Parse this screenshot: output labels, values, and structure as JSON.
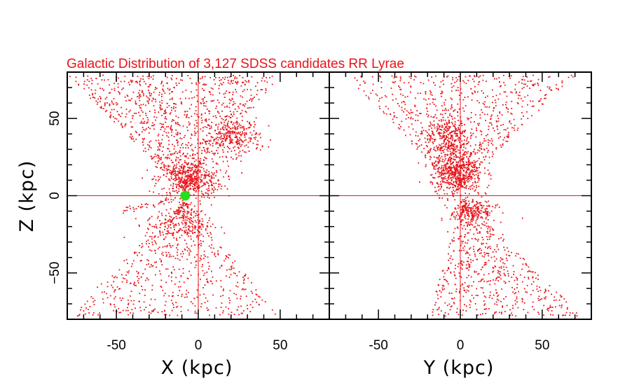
{
  "chart_data": {
    "type": "scatter",
    "title": "Galactic Distribution of 3,127 SDSS candidates RR Lyrae",
    "colors": {
      "points": "#e8141a",
      "sun_marker": "#22e01e",
      "frame": "#000000",
      "title": "#e8141a",
      "reference_lines": "#e8141a"
    },
    "ylabel": "Z (kpc)",
    "ylim": [
      -80,
      80
    ],
    "yticks": [
      50,
      0,
      -50
    ],
    "sun_marker": {
      "panel": "left",
      "x": -8,
      "z": 0
    },
    "panels": [
      {
        "name": "left",
        "xlabel": "X (kpc)",
        "xlim": [
          -80,
          80
        ],
        "xticks": [
          -50,
          0,
          50
        ],
        "xtick_labels": [
          "-50",
          "0",
          "50"
        ],
        "reference_lines": {
          "x": 0,
          "z": 0
        },
        "point_groups": [
          {
            "description": "upper halo cone",
            "apex": [
              -8,
              2
            ],
            "x_range": [
              -80,
              50
            ],
            "z_range": [
              2,
              78
            ],
            "count": 1000
          },
          {
            "description": "dense clump near apex",
            "center": [
              -5,
              10
            ],
            "spread": [
              10,
              6
            ],
            "count": 420
          },
          {
            "description": "upper-right clump",
            "center": [
              22,
              38
            ],
            "spread": [
              8,
              6
            ],
            "count": 280
          },
          {
            "description": "lower halo cone",
            "apex": [
              -8,
              -3
            ],
            "x_range": [
              -80,
              50
            ],
            "z_range": [
              -78,
              -3
            ],
            "count": 620
          },
          {
            "description": "lower clump",
            "center": [
              -12,
              -18
            ],
            "spread": [
              10,
              6
            ],
            "count": 200
          },
          {
            "description": "thin streak toward lower left",
            "from": [
              -8,
              -1
            ],
            "to": [
              -50,
              -10
            ],
            "count": 40
          }
        ]
      },
      {
        "name": "right",
        "xlabel": "Y (kpc)",
        "xlim": [
          -80,
          80
        ],
        "xticks": [
          -50,
          0,
          50
        ],
        "xtick_labels": [
          "-50",
          "0",
          "50"
        ],
        "reference_lines": {
          "x": 0,
          "z": 0
        },
        "point_groups": [
          {
            "description": "upper halo cone",
            "apex": [
              -2,
              3
            ],
            "x_range": [
              -70,
              70
            ],
            "z_range": [
              3,
              78
            ],
            "count": 800
          },
          {
            "description": "upper-left clump",
            "center": [
              -8,
              38
            ],
            "spread": [
              6,
              7
            ],
            "count": 250
          },
          {
            "description": "dense core",
            "center": [
              -2,
              15
            ],
            "spread": [
              8,
              7
            ],
            "count": 500
          },
          {
            "description": "lower halo cone",
            "apex": [
              2,
              -3
            ],
            "x_range": [
              -20,
              75
            ],
            "z_range": [
              -78,
              -3
            ],
            "count": 600
          },
          {
            "description": "lower-right clump",
            "center": [
              8,
              -10
            ],
            "spread": [
              7,
              5
            ],
            "count": 220
          }
        ]
      }
    ]
  }
}
